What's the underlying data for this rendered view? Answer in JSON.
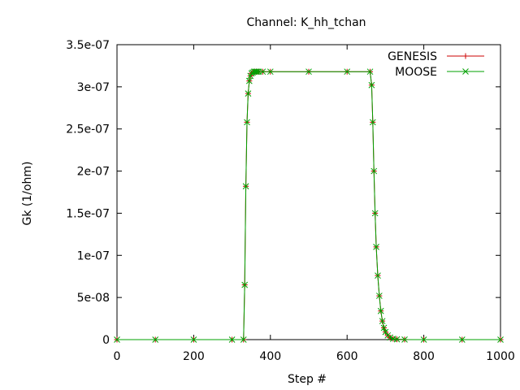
{
  "chart_data": {
    "type": "line",
    "title": "Channel: K_hh_tchan",
    "xlabel": "Step #",
    "ylabel": "Gk (1/ohm)",
    "xlim": [
      0,
      1000
    ],
    "ylim": [
      0,
      3.5e-07
    ],
    "x_ticks": [
      0,
      200,
      400,
      600,
      800,
      1000
    ],
    "x_tick_labels": [
      "0",
      "200",
      "400",
      "600",
      "800",
      "1000"
    ],
    "y_ticks": [
      0,
      5e-08,
      1e-07,
      1.5e-07,
      2e-07,
      2.5e-07,
      3e-07,
      3.5e-07
    ],
    "y_tick_labels": [
      "0",
      "5e-08",
      "1e-07",
      "1.5e-07",
      "2e-07",
      "2.5e-07",
      "3e-07",
      "3.5e-07"
    ],
    "grid": false,
    "legend_position": "top-right",
    "series": [
      {
        "name": "GENESIS",
        "color": "#cc0000",
        "marker": "plus",
        "x": [
          0,
          100,
          200,
          300,
          330,
          333,
          336,
          339,
          342,
          345,
          348,
          351,
          354,
          357,
          360,
          363,
          366,
          370,
          380,
          400,
          500,
          600,
          660,
          664,
          667,
          670,
          673,
          676,
          680,
          684,
          688,
          692,
          696,
          700,
          706,
          712,
          720,
          730,
          750,
          800,
          900,
          1000
        ],
        "values": [
          0,
          0,
          0,
          0,
          0,
          6.5e-08,
          1.82e-07,
          2.58e-07,
          2.92e-07,
          3.07e-07,
          3.13e-07,
          3.16e-07,
          3.17e-07,
          3.18e-07,
          3.18e-07,
          3.18e-07,
          3.18e-07,
          3.18e-07,
          3.18e-07,
          3.18e-07,
          3.18e-07,
          3.18e-07,
          3.18e-07,
          3.02e-07,
          2.58e-07,
          2e-07,
          1.5e-07,
          1.1e-07,
          7.6e-08,
          5.2e-08,
          3.4e-08,
          2.2e-08,
          1.4e-08,
          9e-09,
          5e-09,
          2.5e-09,
          1e-09,
          4e-10,
          1e-10,
          0,
          0,
          0
        ]
      },
      {
        "name": "MOOSE",
        "color": "#00a000",
        "marker": "cross",
        "x": [
          0,
          100,
          200,
          300,
          330,
          333,
          336,
          339,
          342,
          345,
          348,
          351,
          354,
          357,
          360,
          363,
          366,
          370,
          380,
          400,
          500,
          600,
          660,
          664,
          667,
          670,
          673,
          676,
          680,
          684,
          688,
          692,
          696,
          700,
          706,
          712,
          720,
          730,
          750,
          800,
          900,
          1000
        ],
        "values": [
          0,
          0,
          0,
          0,
          0,
          6.5e-08,
          1.82e-07,
          2.58e-07,
          2.92e-07,
          3.07e-07,
          3.13e-07,
          3.16e-07,
          3.17e-07,
          3.18e-07,
          3.18e-07,
          3.18e-07,
          3.18e-07,
          3.18e-07,
          3.18e-07,
          3.18e-07,
          3.18e-07,
          3.18e-07,
          3.18e-07,
          3.02e-07,
          2.58e-07,
          2e-07,
          1.5e-07,
          1.1e-07,
          7.6e-08,
          5.2e-08,
          3.4e-08,
          2.2e-08,
          1.4e-08,
          9e-09,
          5e-09,
          2.5e-09,
          1e-09,
          4e-10,
          1e-10,
          0,
          0,
          0
        ]
      }
    ]
  }
}
